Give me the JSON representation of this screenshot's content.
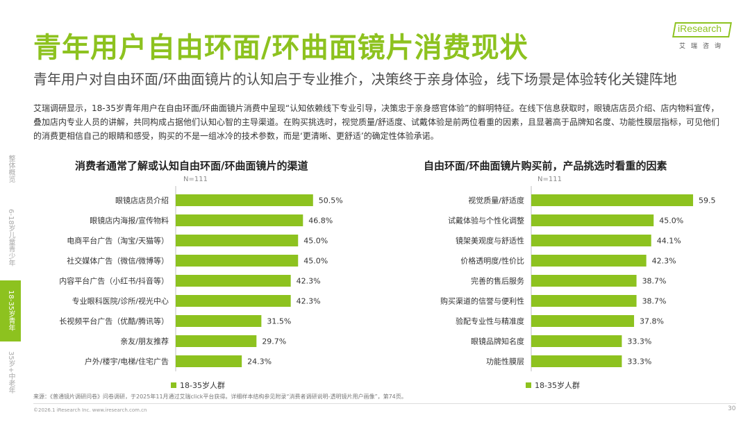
{
  "header": {
    "title": "青年用户自由环面/环曲面镜片消费现状",
    "subtitle": "青年用户对自由环面/环曲面镜片的认知启于专业推介，决策终于亲身体验，线下场景是体验转化关键阵地",
    "description": "艾瑞调研显示，18-35岁青年用户在自由环面/环曲面镜片消费中呈现“认知依赖线下专业引导，决策忠于亲身感官体验”的鲜明特征。在线下信息获取时，眼镜店店员介绍、店内物料宣传，叠加店内专业人员的讲解，共同构成占据他们认知心智的主导渠道。在购买挑选时，视觉质量/舒适度、试戴体验是前两位看重的因素，且显著高于品牌知名度、功能性膜层指标，可见他们的消费更相信自己的眼睛和感受，购买的不是一组冰冷的技术参数，而是‘更清晰、更舒适’的确定性体验承诺。"
  },
  "logo": {
    "text": "iResearch",
    "cn": "艾瑞咨询"
  },
  "sidenav": {
    "items": [
      "整体概览",
      "6-18岁儿童青少年",
      "18-35岁青年",
      "35岁+中老年"
    ]
  },
  "chart_data": [
    {
      "type": "bar",
      "orientation": "horizontal",
      "title": "消费者通常了解或认知自由环面/环曲面镜片的渠道",
      "sample": "N=111",
      "series_name": "18-35岁人群",
      "categories": [
        "眼镜店店员介绍",
        "眼镜店内海报/宣传物料",
        "电商平台广告（淘宝/天猫等）",
        "社交媒体广告（微信/微博等）",
        "内容平台广告（小红书/抖音等）",
        "专业眼科医院/诊所/视光中心",
        "长视频平台广告（优酷/腾讯等）",
        "亲友/朋友推荐",
        "户外/楼宇/电梯/住宅广告"
      ],
      "values": [
        50.5,
        46.8,
        45.0,
        45.0,
        42.3,
        42.3,
        31.5,
        29.7,
        24.3
      ],
      "labels": [
        "50.5%",
        "46.8%",
        "45.0%",
        "45.0%",
        "42.3%",
        "42.3%",
        "31.5%",
        "29.7%",
        "24.3%"
      ],
      "xlim": [
        0,
        60
      ],
      "color": "#8dc21f"
    },
    {
      "type": "bar",
      "orientation": "horizontal",
      "title": "自由环面/环曲面镜片购买前，产品挑选时看重的因素",
      "sample": "N=111",
      "series_name": "18-35岁人群",
      "categories": [
        "视觉质量/舒适度",
        "试戴体验与个性化调整",
        "镜架美观度与舒适性",
        "价格透明度/性价比",
        "完善的售后服务",
        "购买渠道的信誉与便利性",
        "验配专业性与精准度",
        "眼镜品牌知名度",
        "功能性膜层"
      ],
      "values": [
        59.5,
        45.0,
        44.1,
        42.3,
        38.7,
        38.7,
        37.8,
        33.3,
        33.3
      ],
      "labels": [
        "59.5%",
        "45.0%",
        "44.1%",
        "42.3%",
        "38.7%",
        "38.7%",
        "37.8%",
        "33.3%",
        "33.3%"
      ],
      "xlim": [
        0,
        60
      ],
      "color": "#8dc21f"
    }
  ],
  "footer": {
    "source": "来源：《普通镜片调研问卷》问卷调研，于2025年11月通过艾瑞click平台获得。详细样本结构参见附录“消费者调研说明-透明镜片用户画像”，第74页。",
    "copyright": "©2026.1 iResearch Inc.                    www.iresearch.com.cn",
    "page": "30"
  }
}
